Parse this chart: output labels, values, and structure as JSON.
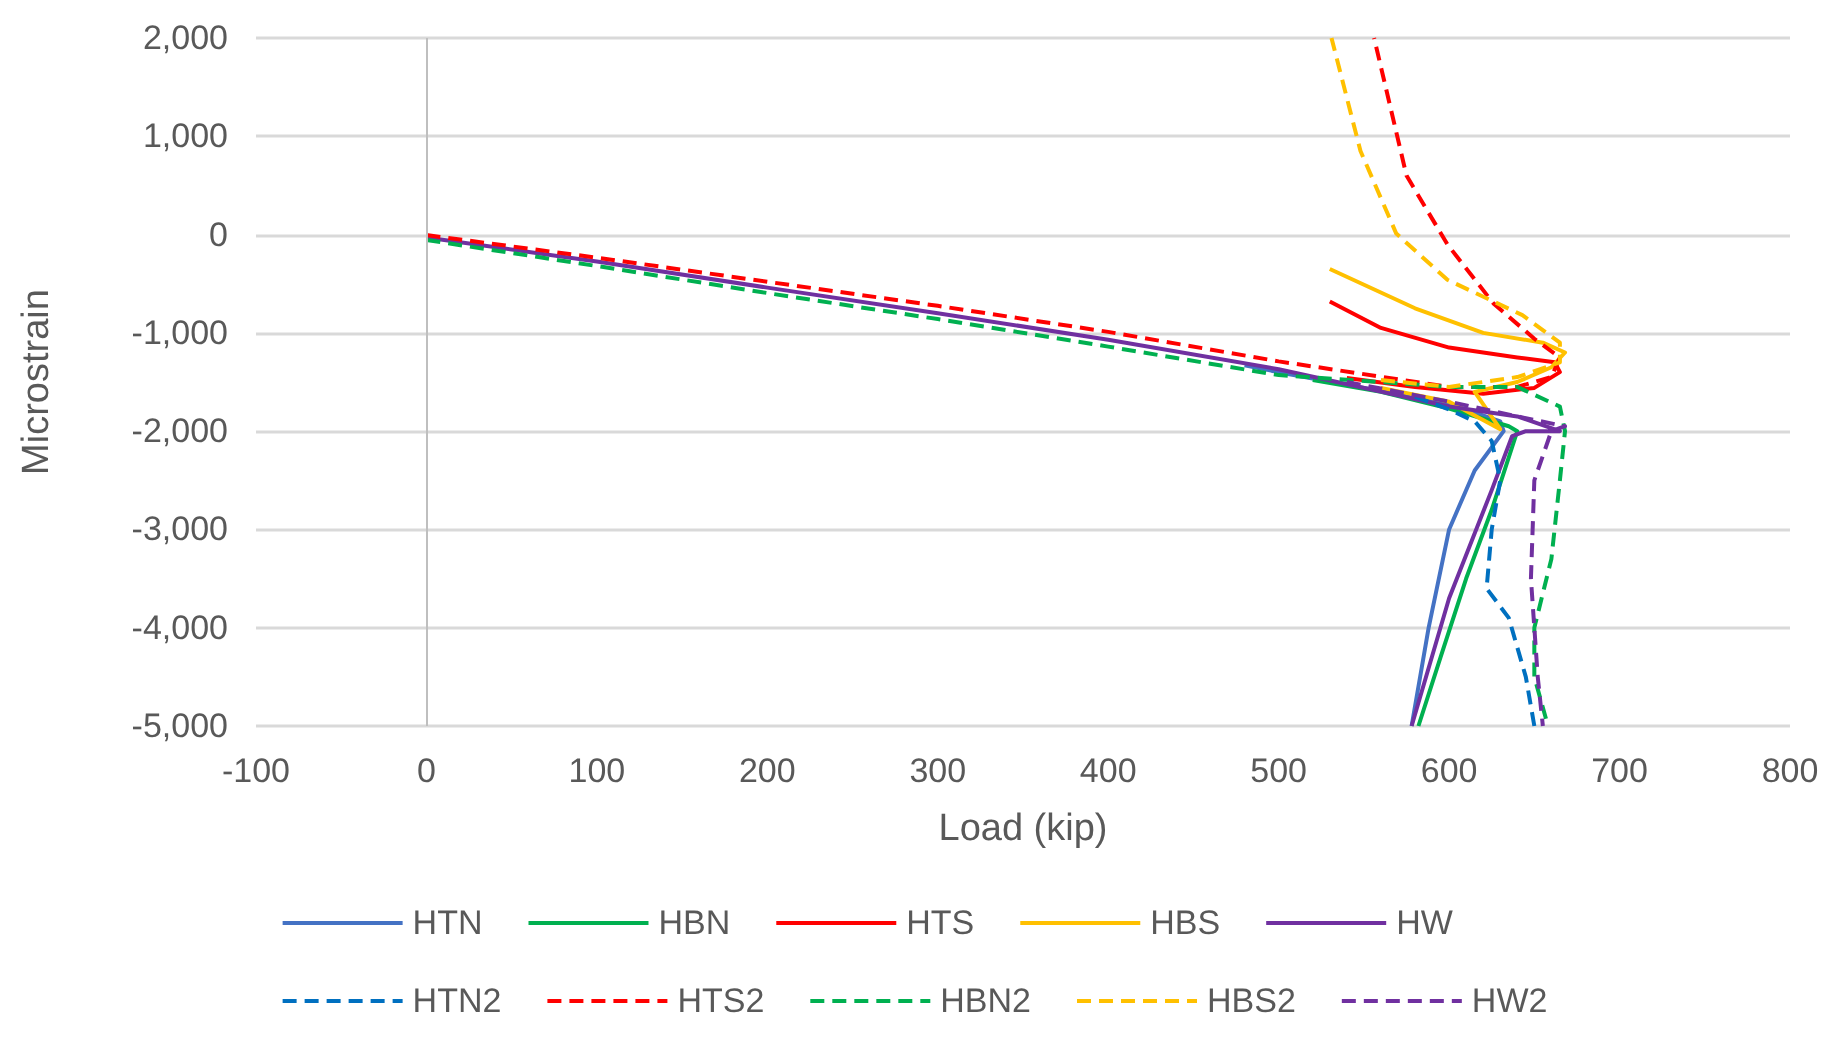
{
  "chart_data": {
    "type": "line",
    "xlabel": "Load (kip)",
    "ylabel": "Microstrain",
    "xlim": [
      -100,
      800
    ],
    "xticks": [
      -100,
      0,
      100,
      200,
      300,
      400,
      500,
      600,
      700,
      800
    ],
    "ylim": [
      -5000,
      2000
    ],
    "yticks": [
      {
        "value": -5000,
        "label": "-5,000"
      },
      {
        "value": -4000,
        "label": "-4,000"
      },
      {
        "value": -3000,
        "label": "-3,000"
      },
      {
        "value": -2000,
        "label": "-2,000"
      },
      {
        "value": -1000,
        "label": "-1,000"
      },
      0,
      {
        "value": 1000,
        "label": "1,000"
      },
      {
        "value": 2000,
        "label": "2,000"
      }
    ],
    "grid": "y",
    "legend": "bottom",
    "marker": "none",
    "ref_lines": [
      {
        "axis": "x",
        "value": 0,
        "color": "#bfbfbf"
      }
    ],
    "series": [
      {
        "name": "HTN",
        "color": "#4472c4",
        "line_style": "solid",
        "x": [
          480,
          500,
          600,
          630,
          632,
          615,
          600,
          588,
          578
        ],
        "values": [
          -1330,
          -1400,
          -1720,
          -1900,
          -2000,
          -2400,
          -3000,
          -4000,
          -5000
        ]
      },
      {
        "name": "HBN",
        "color": "#00b050",
        "line_style": "solid",
        "x": [
          520,
          560,
          600,
          635,
          640,
          625,
          610,
          595,
          582
        ],
        "values": [
          -1480,
          -1600,
          -1770,
          -1950,
          -2000,
          -2800,
          -3500,
          -4300,
          -5000
        ]
      },
      {
        "name": "HTS",
        "color": "#ff0000",
        "line_style": "solid",
        "x": [
          540,
          580,
          620,
          650,
          665,
          662,
          640,
          600,
          560,
          530
        ],
        "values": [
          -1460,
          -1550,
          -1620,
          -1560,
          -1400,
          -1300,
          -1250,
          -1150,
          -950,
          -680
        ]
      },
      {
        "name": "HBS",
        "color": "#ffc000",
        "line_style": "solid",
        "x": [
          560,
          600,
          630,
          615,
          640,
          660,
          668,
          655,
          620,
          580,
          530
        ],
        "values": [
          -1560,
          -1700,
          -1980,
          -1600,
          -1500,
          -1350,
          -1200,
          -1100,
          -1000,
          -750,
          -350
        ]
      },
      {
        "name": "HW",
        "color": "#7030a0",
        "line_style": "solid",
        "x": [
          0,
          100,
          200,
          300,
          400,
          500,
          600,
          640,
          665,
          645,
          637,
          625,
          600,
          578
        ],
        "values": [
          -30,
          -275,
          -540,
          -800,
          -1070,
          -1370,
          -1750,
          -1850,
          -2000,
          -2000,
          -2050,
          -2600,
          -3700,
          -5000
        ]
      },
      {
        "name": "HTN2",
        "color": "#0070c0",
        "line_style": "dashed",
        "x": [
          580,
          600,
          615,
          625,
          630,
          625,
          622,
          635,
          645,
          650
        ],
        "values": [
          -1650,
          -1780,
          -1900,
          -2100,
          -2500,
          -3000,
          -3600,
          -3900,
          -4500,
          -5000
        ]
      },
      {
        "name": "HTS2",
        "color": "#ff0000",
        "line_style": "dashed",
        "x": [
          0,
          100,
          200,
          300,
          400,
          500,
          600,
          640,
          660,
          665,
          650,
          626,
          599,
          575,
          556
        ],
        "values": [
          -5,
          -235,
          -480,
          -725,
          -990,
          -1290,
          -1550,
          -1550,
          -1450,
          -1250,
          -1060,
          -700,
          -100,
          600,
          2000
        ]
      },
      {
        "name": "HBN2",
        "color": "#00b050",
        "line_style": "dashed",
        "x": [
          0,
          100,
          200,
          300,
          400,
          500,
          600,
          640,
          665,
          668,
          665,
          660,
          650,
          650,
          658
        ],
        "values": [
          -55,
          -320,
          -595,
          -860,
          -1140,
          -1430,
          -1550,
          -1550,
          -1750,
          -2000,
          -2500,
          -3300,
          -4000,
          -4500,
          -5000
        ]
      },
      {
        "name": "HBS2",
        "color": "#ffc000",
        "line_style": "dashed",
        "x": [
          560,
          600,
          640,
          665,
          665,
          643,
          599,
          569,
          548,
          531
        ],
        "values": [
          -1480,
          -1550,
          -1450,
          -1300,
          -1100,
          -820,
          -460,
          10,
          850,
          2000
        ]
      },
      {
        "name": "HW2",
        "color": "#7030a0",
        "line_style": "dashed",
        "x": [
          540,
          600,
          640,
          668,
          660,
          650,
          648,
          652,
          655
        ],
        "values": [
          -1500,
          -1700,
          -1850,
          -1950,
          -2000,
          -2500,
          -3500,
          -4500,
          -5000
        ]
      }
    ]
  }
}
